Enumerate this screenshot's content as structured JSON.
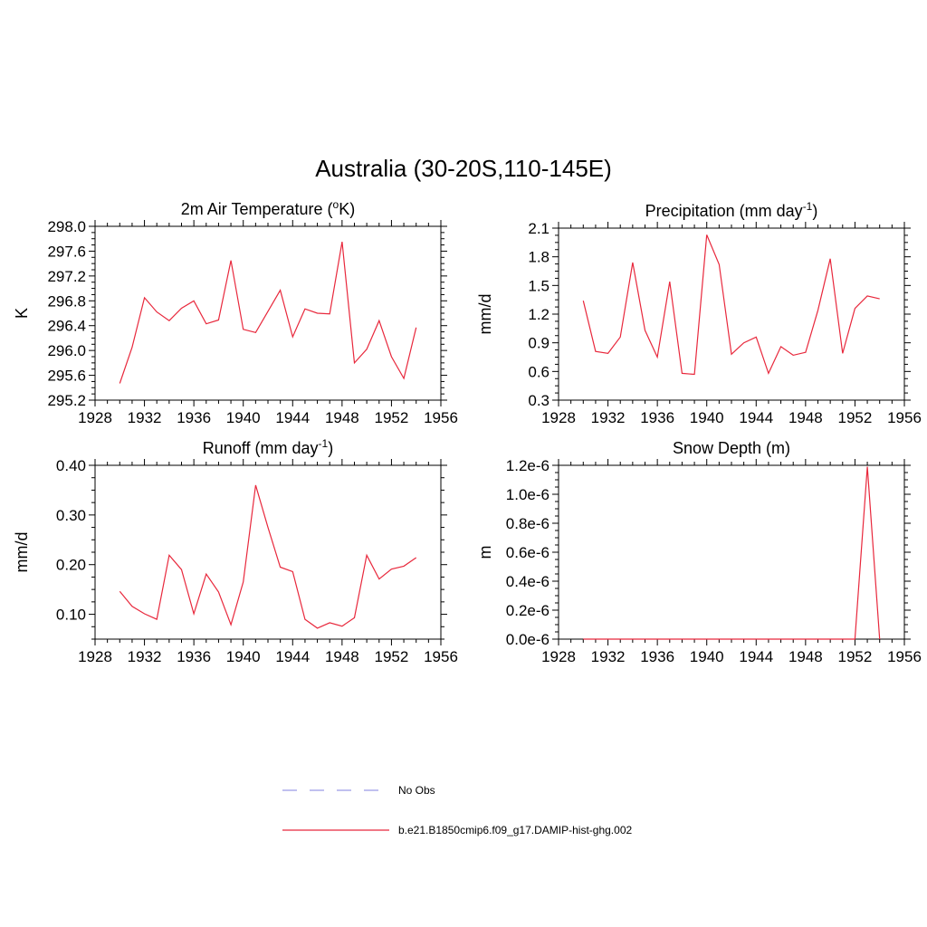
{
  "figure": {
    "title": "Australia (30-20S,110-145E)"
  },
  "legend": {
    "entries": [
      {
        "label": "No Obs",
        "style": "dashed",
        "color": "#9a9ae6"
      },
      {
        "label": "b.e21.B1850cmip6.f09_g17.DAMIP-hist-ghg.002",
        "style": "solid",
        "color": "#e8283c"
      }
    ]
  },
  "chart_data": [
    {
      "type": "line",
      "id": "temperature",
      "title": "2m Air Temperature (",
      "title_super": "o",
      "title_after": "K)",
      "ylabel": "K",
      "xlabel": "",
      "xlim": [
        1928,
        1956
      ],
      "xticks": [
        1928,
        1932,
        1936,
        1940,
        1944,
        1948,
        1952,
        1956
      ],
      "xticklabels": [
        "1928",
        "1932",
        "1936",
        "1940",
        "1944",
        "1948",
        "1952",
        "1956"
      ],
      "ylim": [
        295.2,
        298.0
      ],
      "yticks": [
        295.2,
        295.6,
        296.0,
        296.4,
        296.8,
        297.2,
        297.6,
        298.0
      ],
      "yticklabels": [
        "295.2",
        "295.6",
        "296.0",
        "296.4",
        "296.8",
        "297.2",
        "297.6",
        "298.0"
      ],
      "series": [
        {
          "color": "#e8283c",
          "x": [
            1930,
            1931,
            1932,
            1933,
            1934,
            1935,
            1936,
            1937,
            1938,
            1939,
            1940,
            1941,
            1942,
            1943,
            1944,
            1945,
            1946,
            1947,
            1948,
            1949,
            1950,
            1951,
            1952,
            1953,
            1954
          ],
          "values": [
            295.47,
            296.05,
            296.85,
            296.62,
            296.48,
            296.68,
            296.8,
            296.43,
            296.49,
            297.45,
            296.34,
            296.29,
            296.63,
            296.97,
            296.22,
            296.67,
            296.6,
            296.59,
            297.75,
            295.8,
            296.02,
            296.48,
            295.9,
            295.55,
            296.37
          ]
        }
      ]
    },
    {
      "type": "line",
      "id": "precipitation",
      "title": "Precipitation (mm day",
      "title_super": "-1",
      "title_after": ")",
      "ylabel": "mm/d",
      "xlabel": "",
      "xlim": [
        1928,
        1956
      ],
      "xticks": [
        1928,
        1932,
        1936,
        1940,
        1944,
        1948,
        1952,
        1956
      ],
      "xticklabels": [
        "1928",
        "1932",
        "1936",
        "1940",
        "1944",
        "1948",
        "1952",
        "1956"
      ],
      "ylim": [
        0.3,
        2.1
      ],
      "yticks": [
        0.3,
        0.6,
        0.9,
        1.2,
        1.5,
        1.8,
        2.1
      ],
      "yticklabels": [
        "0.3",
        "0.6",
        "0.9",
        "1.2",
        "1.5",
        "1.8",
        "2.1"
      ],
      "series": [
        {
          "color": "#e8283c",
          "x": [
            1930,
            1931,
            1932,
            1933,
            1934,
            1935,
            1936,
            1937,
            1938,
            1939,
            1940,
            1941,
            1942,
            1943,
            1944,
            1945,
            1946,
            1947,
            1948,
            1949,
            1950,
            1951,
            1952,
            1953,
            1954
          ],
          "values": [
            1.34,
            0.81,
            0.79,
            0.96,
            1.74,
            1.03,
            0.75,
            1.54,
            0.58,
            0.57,
            2.03,
            1.72,
            0.78,
            0.9,
            0.96,
            0.58,
            0.86,
            0.77,
            0.8,
            1.24,
            1.78,
            0.79,
            1.26,
            1.39,
            1.36
          ]
        }
      ]
    },
    {
      "type": "line",
      "id": "runoff",
      "title": "Runoff (mm day",
      "title_super": "-1",
      "title_after": ")",
      "ylabel": "mm/d",
      "xlabel": "",
      "xlim": [
        1928,
        1956
      ],
      "xticks": [
        1928,
        1932,
        1936,
        1940,
        1944,
        1948,
        1952,
        1956
      ],
      "xticklabels": [
        "1928",
        "1932",
        "1936",
        "1940",
        "1944",
        "1948",
        "1952",
        "1956"
      ],
      "ylim": [
        0.05,
        0.4
      ],
      "yticks": [
        0.1,
        0.2,
        0.3,
        0.4
      ],
      "yticklabels": [
        "0.10",
        "0.20",
        "0.30",
        "0.40"
      ],
      "series": [
        {
          "color": "#e8283c",
          "x": [
            1930,
            1931,
            1932,
            1933,
            1934,
            1935,
            1936,
            1937,
            1938,
            1939,
            1940,
            1941,
            1942,
            1943,
            1944,
            1945,
            1946,
            1947,
            1948,
            1949,
            1950,
            1951,
            1952,
            1953,
            1954
          ],
          "values": [
            0.146,
            0.116,
            0.101,
            0.09,
            0.219,
            0.19,
            0.101,
            0.181,
            0.145,
            0.079,
            0.165,
            0.36,
            0.275,
            0.195,
            0.186,
            0.09,
            0.072,
            0.083,
            0.076,
            0.093,
            0.219,
            0.171,
            0.191,
            0.197,
            0.214
          ]
        }
      ]
    },
    {
      "type": "line",
      "id": "snow-depth",
      "title": "Snow Depth (m)",
      "title_super": "",
      "title_after": "",
      "ylabel": "m",
      "xlabel": "",
      "xlim": [
        1928,
        1956
      ],
      "xticks": [
        1928,
        1932,
        1936,
        1940,
        1944,
        1948,
        1952,
        1956
      ],
      "xticklabels": [
        "1928",
        "1932",
        "1936",
        "1940",
        "1944",
        "1948",
        "1952",
        "1956"
      ],
      "ylim": [
        0,
        1.2e-06
      ],
      "yticks": [
        0,
        2e-07,
        4e-07,
        6e-07,
        8e-07,
        1e-06,
        1.2e-06
      ],
      "yticklabels": [
        "0.0e-6",
        "0.2e-6",
        "0.4e-6",
        "0.6e-6",
        "0.8e-6",
        "1.0e-6",
        "1.2e-6"
      ],
      "series": [
        {
          "color": "#e8283c",
          "x": [
            1930,
            1931,
            1932,
            1933,
            1934,
            1935,
            1936,
            1937,
            1938,
            1939,
            1940,
            1941,
            1942,
            1943,
            1944,
            1945,
            1946,
            1947,
            1948,
            1949,
            1950,
            1951,
            1952,
            1953,
            1954
          ],
          "values": [
            0,
            0,
            0,
            0,
            0,
            0,
            0,
            0,
            0,
            0,
            0,
            0,
            0,
            0,
            0,
            0,
            0,
            0,
            0,
            0,
            0,
            0,
            0,
            1.19e-06,
            0
          ]
        }
      ]
    }
  ]
}
